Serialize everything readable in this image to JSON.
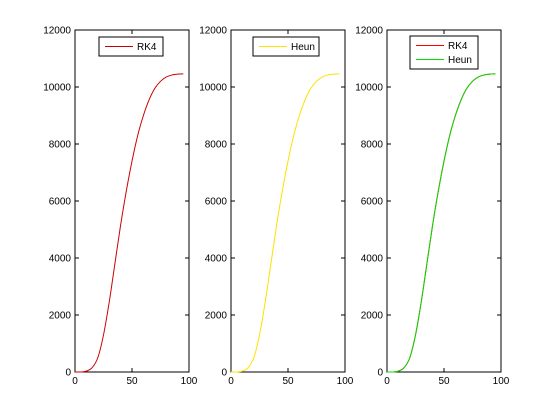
{
  "chart_data": [
    {
      "type": "line",
      "xlim": [
        0,
        100
      ],
      "ylim": [
        0,
        12000
      ],
      "xticks": [
        0,
        50,
        100
      ],
      "yticks": [
        0,
        2000,
        4000,
        6000,
        8000,
        10000,
        12000
      ],
      "xlabel": "",
      "ylabel": "",
      "title": "",
      "grid": false,
      "legend": {
        "position": "top"
      },
      "series": [
        {
          "name": "RK4",
          "color": "#cc0000",
          "x": [
            0,
            5,
            10,
            15,
            20,
            25,
            30,
            35,
            40,
            45,
            50,
            55,
            60,
            65,
            70,
            75,
            80,
            85,
            90,
            95
          ],
          "y": [
            0,
            0,
            30,
            150,
            500,
            1300,
            2450,
            3800,
            5150,
            6350,
            7400,
            8300,
            9000,
            9550,
            9950,
            10200,
            10350,
            10420,
            10450,
            10460
          ]
        }
      ]
    },
    {
      "type": "line",
      "xlim": [
        0,
        100
      ],
      "ylim": [
        0,
        12000
      ],
      "xticks": [
        0,
        50,
        100
      ],
      "yticks": [
        0,
        2000,
        4000,
        6000,
        8000,
        10000,
        12000
      ],
      "xlabel": "",
      "ylabel": "",
      "title": "",
      "grid": false,
      "legend": {
        "position": "top"
      },
      "series": [
        {
          "name": "Heun",
          "color": "#ffe000",
          "x": [
            0,
            5,
            10,
            15,
            20,
            25,
            30,
            35,
            40,
            45,
            50,
            55,
            60,
            65,
            70,
            75,
            80,
            85,
            90,
            95
          ],
          "y": [
            0,
            0,
            30,
            150,
            500,
            1300,
            2450,
            3800,
            5150,
            6350,
            7400,
            8300,
            9000,
            9550,
            9950,
            10200,
            10350,
            10420,
            10450,
            10460
          ]
        }
      ]
    },
    {
      "type": "line",
      "xlim": [
        0,
        100
      ],
      "ylim": [
        0,
        12000
      ],
      "xticks": [
        0,
        50,
        100
      ],
      "yticks": [
        0,
        2000,
        4000,
        6000,
        8000,
        10000,
        12000
      ],
      "xlabel": "",
      "ylabel": "",
      "title": "",
      "grid": false,
      "legend": {
        "position": "top"
      },
      "series": [
        {
          "name": "RK4",
          "color": "#ff0000",
          "x": [
            0,
            5,
            10,
            15,
            20,
            25,
            30,
            35,
            40,
            45,
            50,
            55,
            60,
            65,
            70,
            75,
            80,
            85,
            90,
            95
          ],
          "y": [
            0,
            0,
            30,
            150,
            500,
            1300,
            2450,
            3800,
            5150,
            6350,
            7400,
            8300,
            9000,
            9550,
            9950,
            10200,
            10350,
            10420,
            10450,
            10460
          ]
        },
        {
          "name": "Heun",
          "color": "#00dd00",
          "x": [
            0,
            5,
            10,
            15,
            20,
            25,
            30,
            35,
            40,
            45,
            50,
            55,
            60,
            65,
            70,
            75,
            80,
            85,
            90,
            95
          ],
          "y": [
            0,
            0,
            30,
            150,
            500,
            1300,
            2450,
            3800,
            5150,
            6350,
            7400,
            8300,
            9000,
            9550,
            9950,
            10200,
            10350,
            10420,
            10450,
            10460
          ]
        }
      ]
    }
  ]
}
